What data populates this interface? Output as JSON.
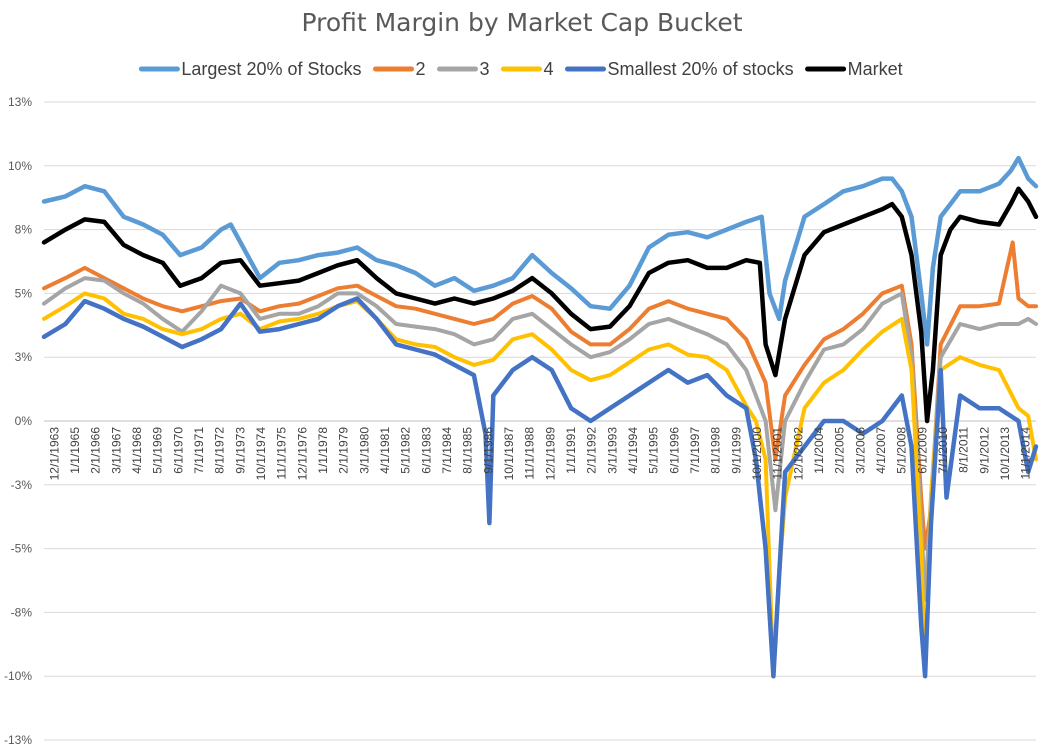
{
  "chart_data": {
    "type": "line",
    "title": "Profit Margin by Market Cap Bucket",
    "xlabel": "",
    "ylabel": "",
    "ylim": [
      -12.5,
      12.5
    ],
    "yticks": [
      13,
      10,
      8,
      5,
      3,
      0,
      -3,
      -5,
      -8,
      -10,
      -13
    ],
    "ytick_labels": [
      "13%",
      "10%",
      "8%",
      "5%",
      "3%",
      "0%",
      "-3%",
      "-5%",
      "-8%",
      "-10%",
      "-13%"
    ],
    "grid": true,
    "legend_position": "top",
    "x_tick_labels": [
      "12/1/1963",
      "1/1/1965",
      "2/1/1966",
      "3/1/1967",
      "4/1/1968",
      "5/1/1969",
      "6/1/1970",
      "7/1/1971",
      "8/1/1972",
      "9/1/1973",
      "10/1/1974",
      "11/1/1975",
      "12/1/1976",
      "1/1/1978",
      "2/1/1979",
      "3/1/1980",
      "4/1/1981",
      "5/1/1982",
      "6/1/1983",
      "7/1/1984",
      "8/1/1985",
      "9/1/1986",
      "10/1/1987",
      "11/1/1988",
      "12/1/1989",
      "1/1/1991",
      "2/1/1992",
      "3/1/1993",
      "4/1/1994",
      "5/1/1995",
      "6/1/1996",
      "7/1/1997",
      "8/1/1998",
      "9/1/1999",
      "10/1/2000",
      "11/1/2001",
      "12/1/2002",
      "1/1/2004",
      "2/1/2005",
      "3/1/2006",
      "4/1/2007",
      "5/1/2008",
      "6/1/2009",
      "7/1/2010",
      "8/1/2011",
      "9/1/2012",
      "10/1/2013",
      "11/1/2014"
    ],
    "series": [
      {
        "name": "Largest 20% of Stocks",
        "color": "#5b9bd5",
        "x": [
          1963.9,
          1965,
          1966,
          1967,
          1968,
          1969,
          1970,
          1970.9,
          1972,
          1973,
          1973.5,
          1974,
          1975,
          1976,
          1977,
          1978,
          1979,
          1980,
          1981,
          1982,
          1983,
          1984,
          1985,
          1986,
          1987,
          1988,
          1989,
          1990,
          1991,
          1992,
          1993,
          1994,
          1995,
          1996,
          1997,
          1998,
          1999,
          2000,
          2000.8,
          2001.2,
          2001.7,
          2002,
          2003,
          2004,
          2005,
          2006,
          2007,
          2007.5,
          2008,
          2008.5,
          2009,
          2009.3,
          2009.6,
          2010,
          2010.5,
          2011,
          2012,
          2013,
          2013.6,
          2014,
          2014.5,
          2014.9
        ],
        "values": [
          8.6,
          8.8,
          9.2,
          9.0,
          8.0,
          7.7,
          7.3,
          6.5,
          6.8,
          7.5,
          7.7,
          7.0,
          5.6,
          6.2,
          6.3,
          6.5,
          6.6,
          6.8,
          6.3,
          6.1,
          5.8,
          5.3,
          5.6,
          5.1,
          5.3,
          5.6,
          6.5,
          5.8,
          5.2,
          4.5,
          4.4,
          5.3,
          6.8,
          7.3,
          7.4,
          7.2,
          7.5,
          7.8,
          8.0,
          5.0,
          4.0,
          5.5,
          8.0,
          8.5,
          9.0,
          9.2,
          9.5,
          9.5,
          9.0,
          8.0,
          5.0,
          3.0,
          6.0,
          8.0,
          8.5,
          9.0,
          9.0,
          9.3,
          9.8,
          10.3,
          9.5,
          9.2
        ]
      },
      {
        "name": "2",
        "color": "#ed7d31",
        "x": [
          1963.9,
          1965,
          1966,
          1967,
          1968,
          1969,
          1970,
          1971,
          1972,
          1973,
          1974,
          1975,
          1976,
          1977,
          1978,
          1979,
          1980,
          1981,
          1982,
          1983,
          1984,
          1985,
          1986,
          1987,
          1988,
          1989,
          1990,
          1991,
          1992,
          1993,
          1994,
          1995,
          1996,
          1997,
          1998,
          1999,
          2000,
          2001,
          2001.5,
          2002,
          2003,
          2004,
          2005,
          2006,
          2007,
          2008,
          2008.5,
          2009,
          2009.2,
          2009.5,
          2010,
          2011,
          2012,
          2013,
          2013.7,
          2014,
          2014.5,
          2014.9
        ],
        "values": [
          5.2,
          5.6,
          6.0,
          5.6,
          5.2,
          4.8,
          4.5,
          4.3,
          4.5,
          4.7,
          4.8,
          4.3,
          4.5,
          4.6,
          4.9,
          5.2,
          5.3,
          4.9,
          4.5,
          4.4,
          4.2,
          4.0,
          3.8,
          4.0,
          4.6,
          4.9,
          4.4,
          3.5,
          3.0,
          3.0,
          3.6,
          4.4,
          4.7,
          4.4,
          4.2,
          4.0,
          3.2,
          1.5,
          -1.5,
          1.0,
          2.2,
          3.2,
          3.6,
          4.2,
          5.0,
          5.3,
          3.0,
          -3.0,
          -5.0,
          -3.5,
          3.0,
          4.5,
          4.5,
          4.6,
          7.0,
          4.8,
          4.5,
          4.5
        ]
      },
      {
        "name": "3",
        "color": "#a5a5a5",
        "x": [
          1963.9,
          1965,
          1966,
          1967,
          1968,
          1969,
          1970,
          1971,
          1972,
          1973,
          1974,
          1975,
          1976,
          1977,
          1978,
          1979,
          1980,
          1981,
          1982,
          1983,
          1984,
          1985,
          1986,
          1987,
          1988,
          1989,
          1990,
          1991,
          1992,
          1993,
          1994,
          1995,
          1996,
          1997,
          1998,
          1999,
          2000,
          2001,
          2001.5,
          2002,
          2003,
          2004,
          2005,
          2006,
          2007,
          2008,
          2008.5,
          2009,
          2009.2,
          2009.5,
          2010,
          2011,
          2012,
          2013,
          2014,
          2014.5,
          2014.9
        ],
        "values": [
          4.6,
          5.2,
          5.6,
          5.5,
          5.0,
          4.6,
          4.0,
          3.5,
          4.3,
          5.3,
          5.0,
          4.0,
          4.2,
          4.2,
          4.5,
          5.0,
          5.0,
          4.5,
          3.8,
          3.7,
          3.6,
          3.4,
          3.0,
          3.2,
          4.0,
          4.2,
          3.6,
          3.0,
          2.5,
          2.7,
          3.2,
          3.8,
          4.0,
          3.7,
          3.4,
          3.0,
          2.0,
          0.0,
          -3.5,
          0.0,
          1.5,
          2.8,
          3.0,
          3.6,
          4.6,
          5.0,
          2.5,
          -4.0,
          -7.0,
          -3.0,
          2.5,
          3.8,
          3.6,
          3.8,
          3.8,
          4.0,
          3.8
        ]
      },
      {
        "name": "4",
        "color": "#ffc000",
        "x": [
          1963.9,
          1965,
          1966,
          1967,
          1968,
          1969,
          1970,
          1971,
          1972,
          1973,
          1974,
          1975,
          1976,
          1977,
          1978,
          1979,
          1980,
          1981,
          1982,
          1983,
          1984,
          1985,
          1986,
          1987,
          1988,
          1989,
          1990,
          1991,
          1992,
          1993,
          1994,
          1995,
          1996,
          1997,
          1998,
          1999,
          2000,
          2000.5,
          2001,
          2001.4,
          2001.7,
          2002,
          2003,
          2004,
          2005,
          2006,
          2007,
          2008,
          2008.5,
          2009,
          2009.2,
          2009.5,
          2010,
          2011,
          2012,
          2013,
          2014,
          2014.5,
          2014.9
        ],
        "values": [
          4.0,
          4.5,
          5.0,
          4.8,
          4.2,
          4.0,
          3.6,
          3.4,
          3.6,
          4.0,
          4.2,
          3.6,
          3.9,
          4.0,
          4.2,
          4.5,
          4.7,
          4.0,
          3.2,
          3.0,
          2.9,
          2.5,
          2.2,
          2.4,
          3.2,
          3.4,
          2.8,
          2.0,
          1.6,
          1.8,
          2.3,
          2.8,
          3.0,
          2.6,
          2.5,
          2.0,
          0.6,
          0.0,
          -1.5,
          -10.0,
          -6.0,
          -3.0,
          0.5,
          1.5,
          2.0,
          2.8,
          3.5,
          4.0,
          2.0,
          -5.0,
          -10.0,
          -3.0,
          2.0,
          2.5,
          2.2,
          2.0,
          0.5,
          0.2,
          -1.5
        ]
      },
      {
        "name": "Smallest 20% of stocks",
        "color": "#4472c4",
        "x": [
          1963.9,
          1965,
          1966,
          1967,
          1968,
          1969,
          1970,
          1971,
          1972,
          1973,
          1974,
          1975,
          1976,
          1977,
          1978,
          1979,
          1980,
          1981,
          1982,
          1983,
          1984,
          1985,
          1986,
          1986.6,
          1986.8,
          1987,
          1988,
          1989,
          1990,
          1991,
          1992,
          1993,
          1994,
          1995,
          1996,
          1997,
          1998,
          1999,
          2000,
          2000.5,
          2001,
          2001.4,
          2001.7,
          2002,
          2003,
          2004,
          2005,
          2006,
          2007,
          2008,
          2008.5,
          2009,
          2009.2,
          2009.5,
          2010,
          2010.3,
          2011,
          2012,
          2013,
          2014,
          2014.5,
          2014.9
        ],
        "values": [
          3.3,
          3.8,
          4.7,
          4.4,
          4.0,
          3.7,
          3.3,
          2.9,
          3.2,
          3.6,
          4.6,
          3.5,
          3.6,
          3.8,
          4.0,
          4.5,
          4.8,
          4.0,
          3.0,
          2.8,
          2.6,
          2.2,
          1.8,
          -0.5,
          -4.0,
          1.0,
          2.0,
          2.5,
          2.0,
          0.5,
          0.0,
          0.5,
          1.0,
          1.5,
          2.0,
          1.5,
          1.8,
          1.0,
          0.5,
          -1.5,
          -5.0,
          -10.0,
          -6.0,
          -2.0,
          -1.0,
          0.0,
          0.0,
          -0.5,
          0.0,
          1.0,
          -1.0,
          -8.0,
          -10.0,
          -4.0,
          2.0,
          -3.0,
          1.0,
          0.5,
          0.5,
          0.0,
          -2.0,
          -1.0
        ]
      },
      {
        "name": "Market",
        "color": "#000000",
        "x": [
          1963.9,
          1965,
          1966,
          1967,
          1968,
          1969,
          1970,
          1970.9,
          1972,
          1973,
          1974,
          1975,
          1976,
          1977,
          1978,
          1979,
          1980,
          1981,
          1982,
          1983,
          1984,
          1985,
          1986,
          1987,
          1988,
          1989,
          1990,
          1991,
          1992,
          1993,
          1994,
          1995,
          1996,
          1997,
          1998,
          1999,
          2000,
          2000.7,
          2001,
          2001.5,
          2002,
          2003,
          2004,
          2005,
          2006,
          2007,
          2007.5,
          2008,
          2008.5,
          2009,
          2009.3,
          2009.6,
          2010,
          2010.5,
          2011,
          2012,
          2013,
          2013.6,
          2014,
          2014.5,
          2014.9
        ],
        "values": [
          7.0,
          7.5,
          7.9,
          7.8,
          6.9,
          6.5,
          6.2,
          5.3,
          5.6,
          6.2,
          6.3,
          5.3,
          5.4,
          5.5,
          5.8,
          6.1,
          6.3,
          5.6,
          5.0,
          4.8,
          4.6,
          4.8,
          4.6,
          4.8,
          5.1,
          5.6,
          5.0,
          4.2,
          3.6,
          3.7,
          4.5,
          5.8,
          6.2,
          6.3,
          6.0,
          6.0,
          6.3,
          6.2,
          3.0,
          1.8,
          4.0,
          6.5,
          7.4,
          7.7,
          8.0,
          8.3,
          8.5,
          8.0,
          6.5,
          3.5,
          0.0,
          2.0,
          6.5,
          7.5,
          8.0,
          7.8,
          7.7,
          8.5,
          9.1,
          8.6,
          8.0
        ]
      }
    ]
  }
}
